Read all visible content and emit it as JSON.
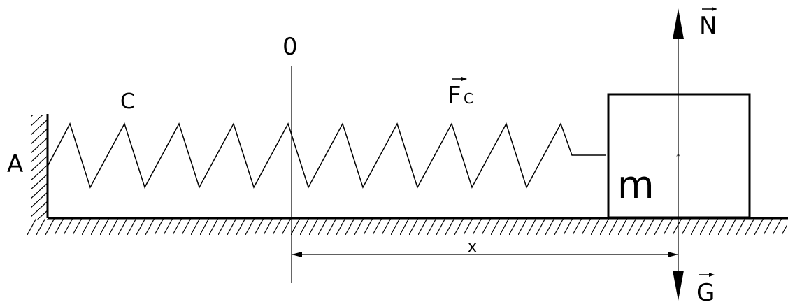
{
  "labels": {
    "wall": "A",
    "spring": "C",
    "origin": "0",
    "spring_force_main": "F",
    "spring_force_sub": "C",
    "mass": "m",
    "normal_force": "N",
    "gravity": "G",
    "displacement": "x"
  },
  "colors": {
    "ink": "#000000",
    "background": "#ffffff"
  },
  "spring": {
    "coil_count": 9
  }
}
